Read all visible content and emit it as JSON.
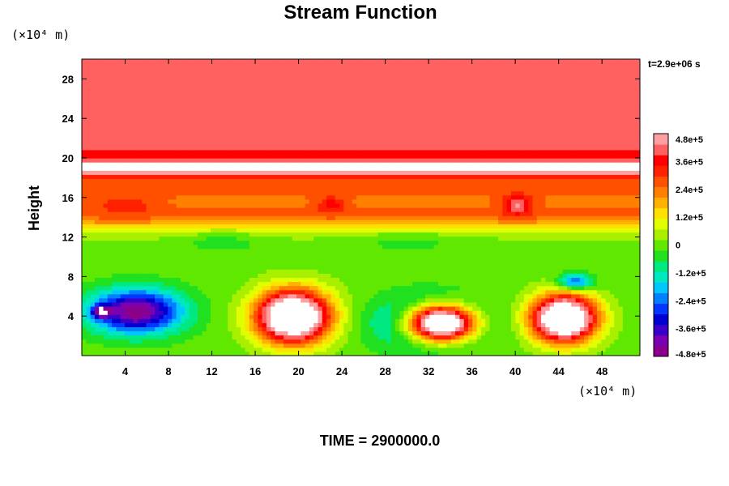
{
  "chart_data": {
    "type": "heatmap",
    "title": "Stream Function",
    "ylabel": "Height",
    "y_units": "(×10⁴ m)",
    "x_units": "(×10⁴ m)",
    "timestamp": "t=2.9e+06 s",
    "footer": "TIME = 2900000.0",
    "xlim": [
      0,
      51.5
    ],
    "ylim": [
      0,
      30
    ],
    "xticks": [
      4,
      8,
      12,
      16,
      20,
      24,
      28,
      32,
      36,
      40,
      44,
      48
    ],
    "yticks": [
      4,
      8,
      12,
      16,
      20,
      24,
      28
    ],
    "xtick_labels": [
      "4",
      "8",
      "12",
      "16",
      "20",
      "24",
      "28",
      "32",
      "36",
      "40",
      "44",
      "48"
    ],
    "ytick_labels": [
      "4",
      "8",
      "12",
      "16",
      "20",
      "24",
      "28"
    ],
    "colorbar": {
      "min": -480000,
      "max": 480000,
      "labels": [
        "4.8e+5",
        "3.6e+5",
        "2.4e+5",
        "1.2e+5",
        "0",
        "-1.2e+5",
        "-2.4e+5",
        "-3.6e+5",
        "-4.8e+5"
      ],
      "label_values": [
        480000,
        360000,
        240000,
        120000,
        0,
        -120000,
        -240000,
        -360000,
        -480000
      ],
      "colors": [
        "#8B008B",
        "#7A00B0",
        "#3A00C8",
        "#0000D0",
        "#0038FF",
        "#0080FF",
        "#00C8FF",
        "#00E8C0",
        "#00E880",
        "#20E020",
        "#60E800",
        "#A8F000",
        "#E0FF00",
        "#FFE000",
        "#FFB000",
        "#FF8000",
        "#FF5000",
        "#FF2000",
        "#FF0000",
        "#FF6060",
        "#FFA0A0"
      ]
    },
    "field": {
      "background_value": 0,
      "upper_value": 430000,
      "layers": [
        {
          "y_center": 17,
          "y_width": 3.2,
          "value": 260000
        },
        {
          "y_center": 14,
          "y_width": 1.3,
          "value": 140000
        },
        {
          "y_center": 19.2,
          "y_width": 0.8,
          "value": 520000
        }
      ],
      "blobs": [
        {
          "x": 5,
          "y": 4.5,
          "sx": 4.2,
          "sy": 2.2,
          "value": -470000
        },
        {
          "x": 1.8,
          "y": 4.5,
          "sx": 0.8,
          "sy": 0.6,
          "value": -350000
        },
        {
          "x": 19.5,
          "y": 4,
          "sx": 3.3,
          "sy": 2.6,
          "value": 820000
        },
        {
          "x": 32.5,
          "y": 3.3,
          "sx": 4.4,
          "sy": 2.4,
          "value": -620000
        },
        {
          "x": 33,
          "y": 3.3,
          "sx": 3.3,
          "sy": 1.9,
          "value": 1320000
        },
        {
          "x": 44.5,
          "y": 3.8,
          "sx": 2.9,
          "sy": 2.3,
          "value": 820000
        },
        {
          "x": 45.5,
          "y": 7.5,
          "sx": 1.5,
          "sy": 0.8,
          "value": -300000
        },
        {
          "x": 40.2,
          "y": 15.3,
          "sx": 1.3,
          "sy": 1.0,
          "value": 200000
        },
        {
          "x": 23,
          "y": 15.3,
          "sx": 1.2,
          "sy": 0.8,
          "value": 120000
        },
        {
          "x": 4,
          "y": 15.3,
          "sx": 2.6,
          "sy": 1.0,
          "value": 80000
        },
        {
          "x": 13,
          "y": 11.7,
          "sx": 4,
          "sy": 1.2,
          "value": -60000
        },
        {
          "x": 30,
          "y": 11.7,
          "sx": 6,
          "sy": 1.2,
          "value": -50000
        }
      ]
    }
  }
}
